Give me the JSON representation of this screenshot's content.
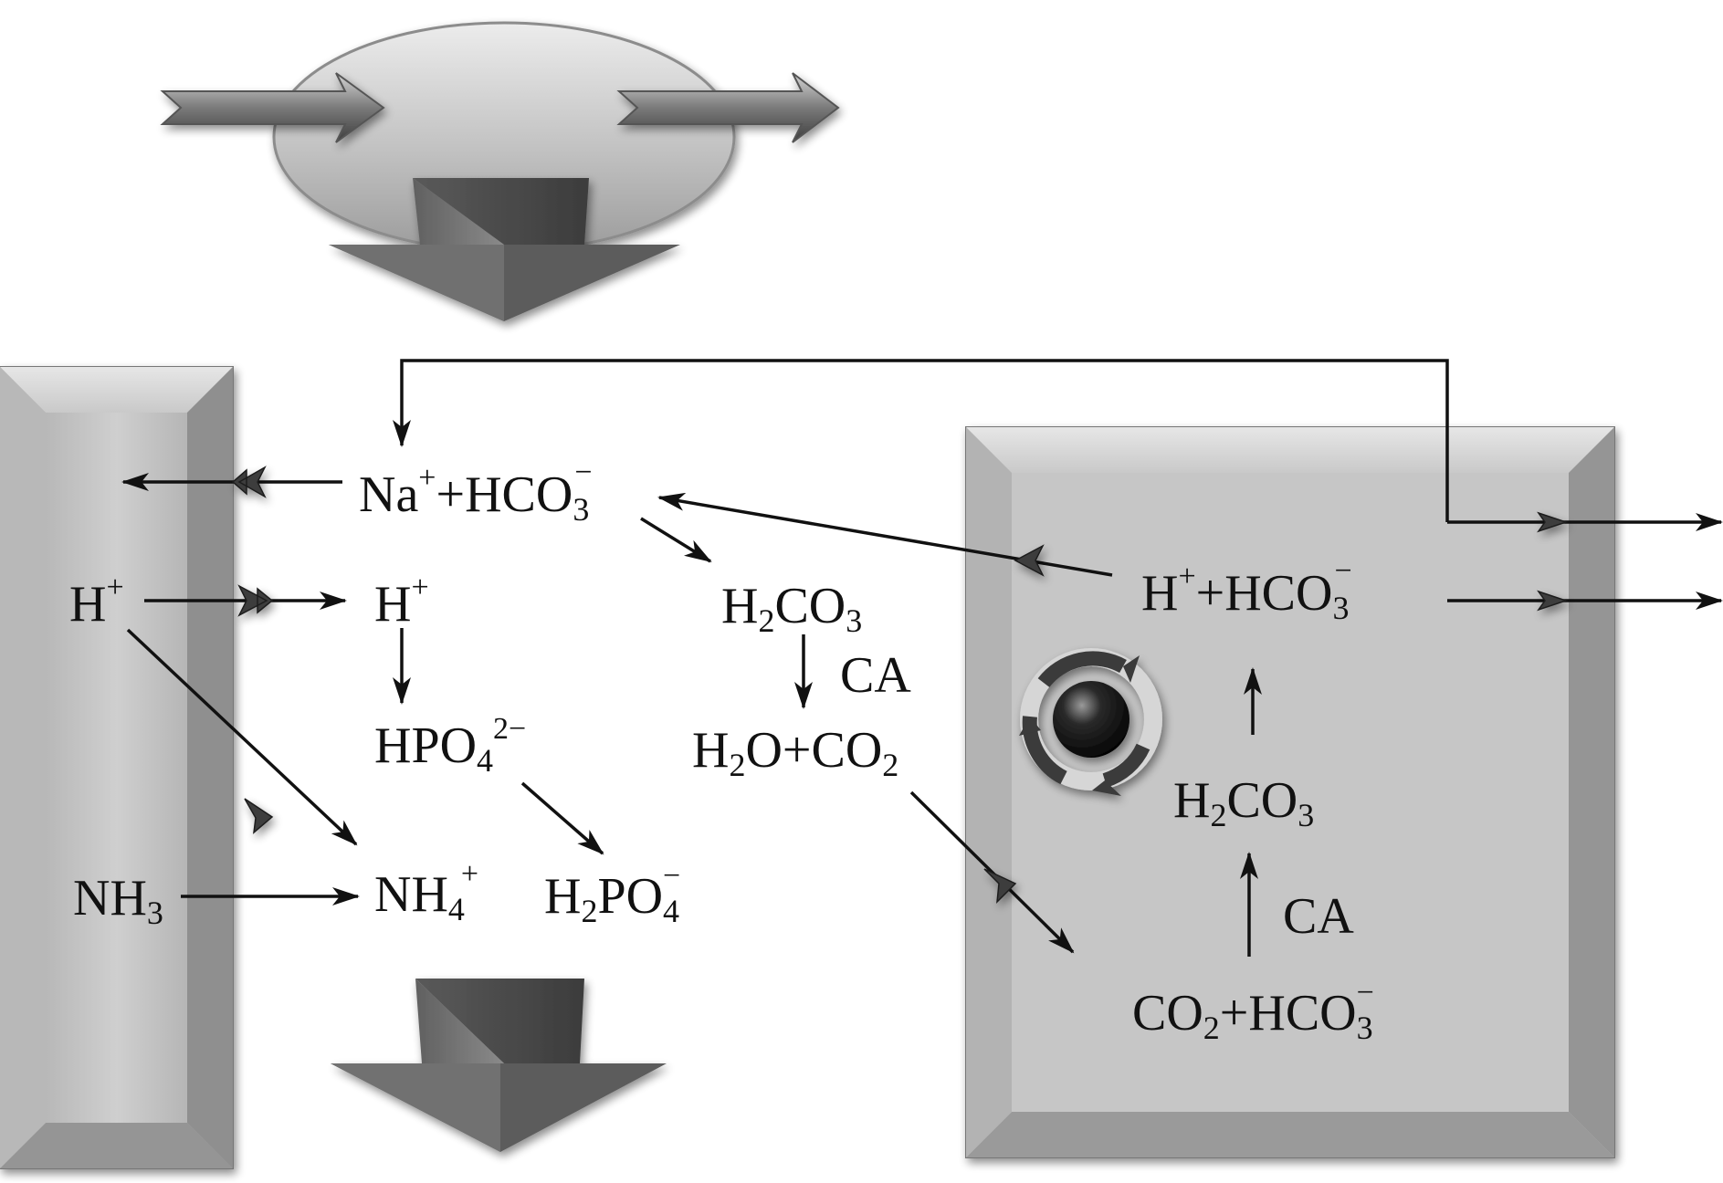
{
  "colors": {
    "background": "#ffffff",
    "panel_gray": "#c4c4c4",
    "panel_edge": "#7a7a7a",
    "ellipse_gray": "#bdbdbd",
    "arrow_dark": "#4e4e4e",
    "line": "#111111",
    "text": "#111111"
  },
  "icons": {
    "rotation": "circular-arrows-around-sphere-icon",
    "channel": "chevron-arrow-icon",
    "flow": "block-down-arrow-icon"
  },
  "labels": {
    "na_hco3": {
      "base": "Na",
      "sup1": "+",
      "plus": "+HCO",
      "sub": "3",
      "sup2": "−"
    },
    "h_left": {
      "base": "H",
      "sup": "+"
    },
    "h_mid": {
      "base": "H",
      "sup": "+"
    },
    "hpo4": {
      "base": "HPO",
      "sub": "4",
      "sup": "2−"
    },
    "h2po4": {
      "h": "H",
      "sub1": "2",
      "po": "PO",
      "sub2": "4",
      "sup": "−"
    },
    "nh3": {
      "base": "NH",
      "sub": "3"
    },
    "nh4": {
      "base": "NH",
      "sub": "4",
      "sup": "+"
    },
    "h2co3_mid": {
      "h": "H",
      "sub1": "2",
      "co": "CO",
      "sub2": "3"
    },
    "ca_mid": "CA",
    "h2o_co2": {
      "h": "H",
      "sub1": "2",
      "o": "O+CO",
      "sub2": "2"
    },
    "h_hco3_right": {
      "h": "H",
      "sup1": "+",
      "plus": "+HCO",
      "sub": "3",
      "sup2": "−"
    },
    "h2co3_right": {
      "h": "H",
      "sub1": "2",
      "co": "CO",
      "sub2": "3"
    },
    "ca_right": "CA",
    "co2_hco3": {
      "co": "CO",
      "sub1": "2",
      "plus": "+HCO",
      "sub2": "3",
      "sup": "−"
    }
  }
}
